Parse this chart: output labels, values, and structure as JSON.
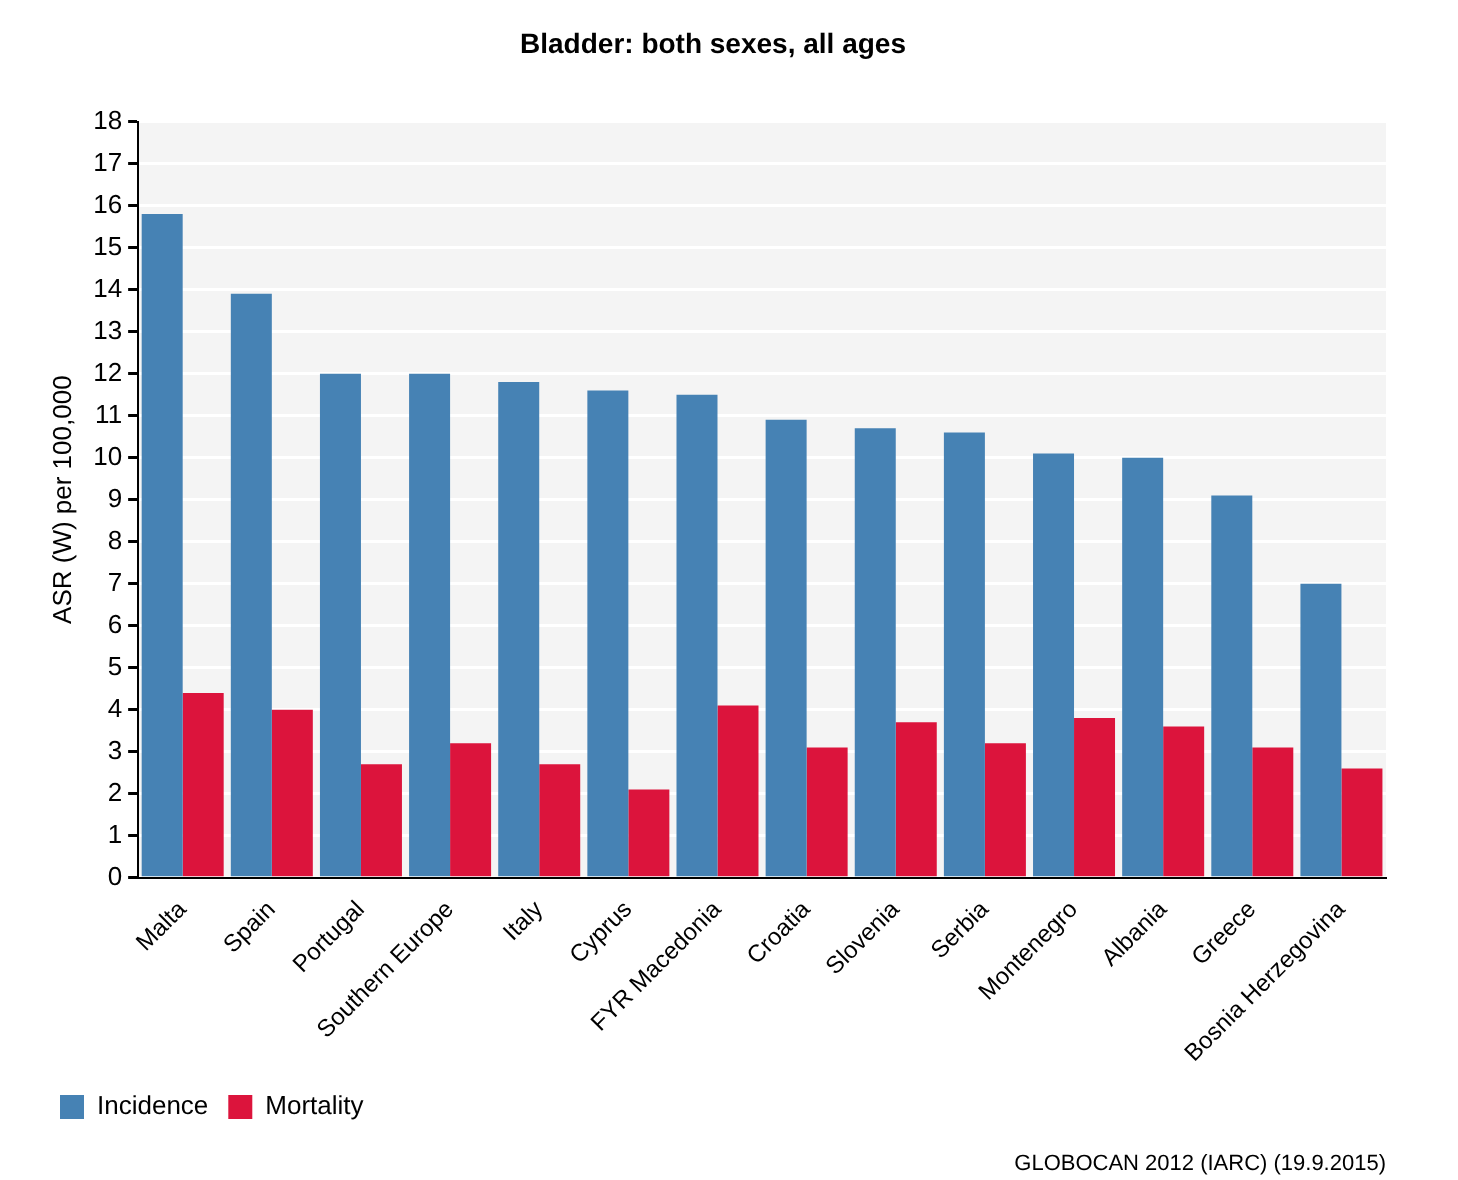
{
  "chart_data": {
    "type": "bar",
    "title": "Bladder: both sexes, all ages",
    "ylabel": "ASR (W) per 100,000",
    "categories": [
      "Malta",
      "Spain",
      "Portugal",
      "Southern Europe",
      "Italy",
      "Cyprus",
      "FYR Macedonia",
      "Croatia",
      "Slovenia",
      "Serbia",
      "Montenegro",
      "Albania",
      "Greece",
      "Bosnia Herzegovina"
    ],
    "series": [
      {
        "name": "Incidence",
        "color": "#4682b4",
        "values": [
          15.8,
          13.9,
          12.0,
          12.0,
          11.8,
          11.6,
          11.5,
          10.9,
          10.7,
          10.6,
          10.1,
          10.0,
          9.1,
          7.0
        ]
      },
      {
        "name": "Mortality",
        "color": "#dc143c",
        "values": [
          4.4,
          4.0,
          2.7,
          3.2,
          2.7,
          2.1,
          4.1,
          3.1,
          3.7,
          3.2,
          3.8,
          3.6,
          3.1,
          2.6
        ]
      }
    ],
    "ylim": [
      0,
      18
    ],
    "yticks": [
      0,
      1,
      2,
      3,
      4,
      5,
      6,
      7,
      8,
      9,
      10,
      11,
      12,
      13,
      14,
      15,
      16,
      17,
      18
    ],
    "grid": "y",
    "legend": "bottom left",
    "annotations": [
      "GLOBOCAN 2012 (IARC) (19.9.2015)"
    ]
  }
}
